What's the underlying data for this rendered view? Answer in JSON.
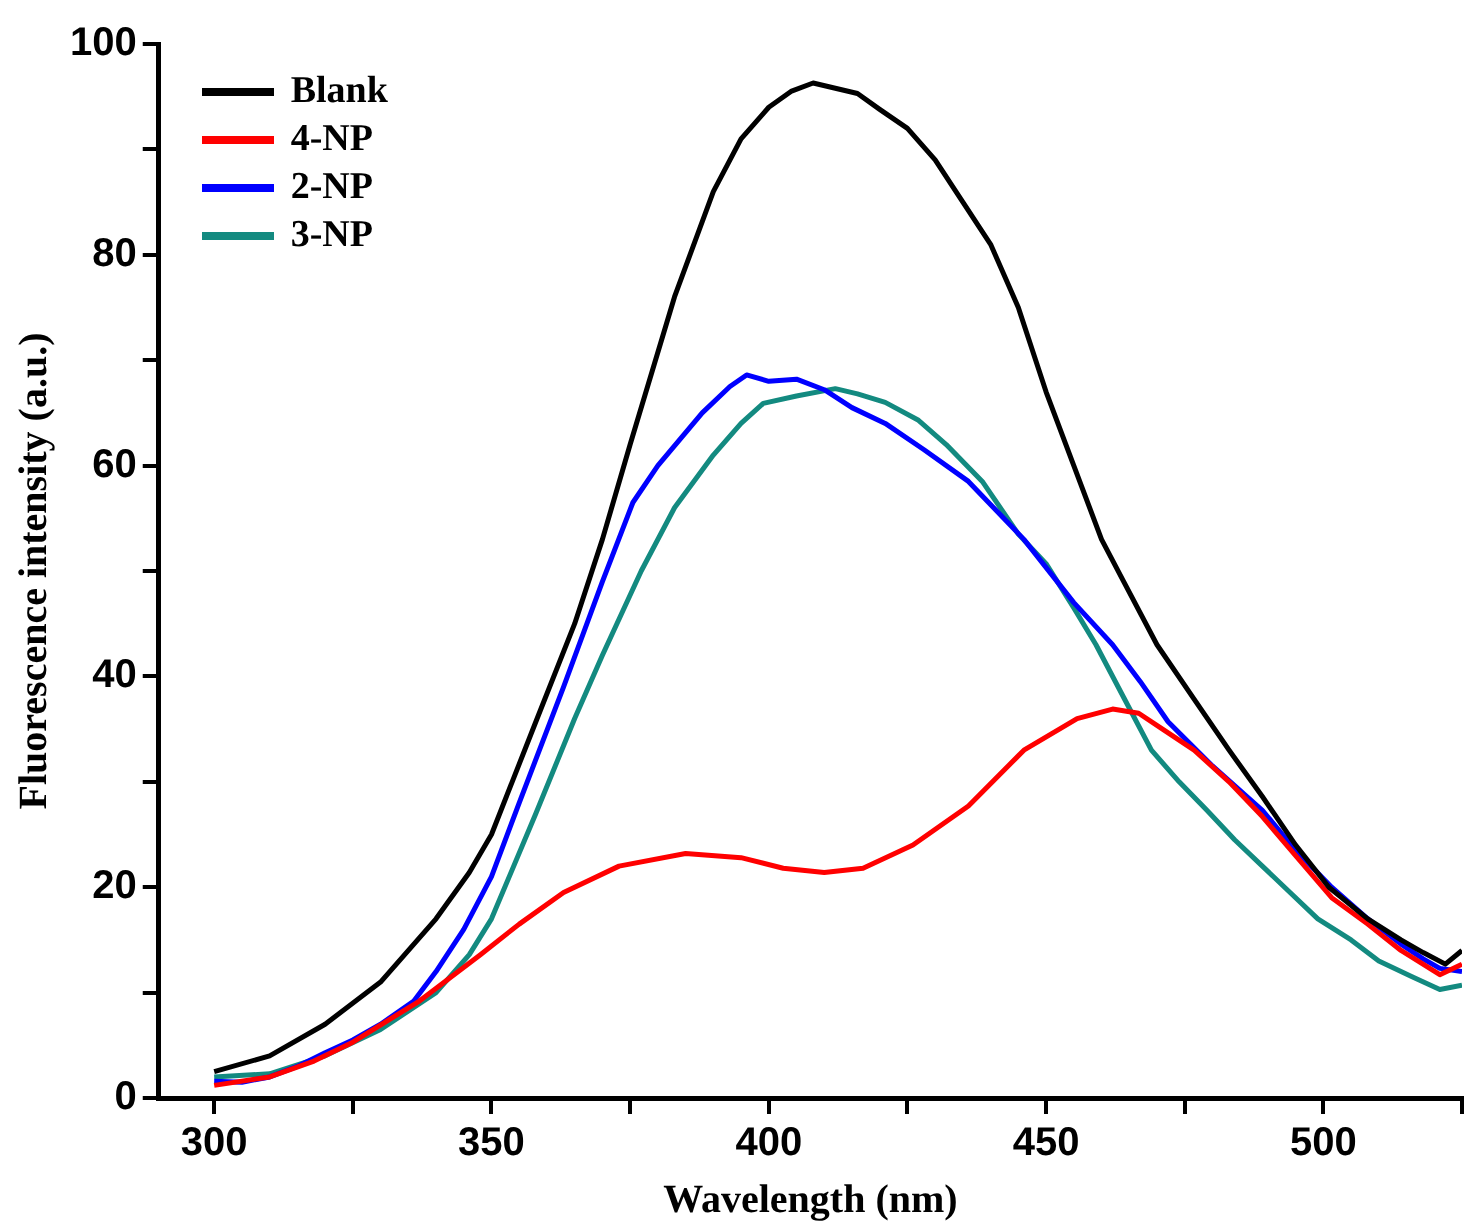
{
  "chart_data": {
    "type": "line",
    "xlabel": "Wavelength (nm)",
    "ylabel": "Fluorescence intensity (a.u.)",
    "xlim": [
      290,
      525
    ],
    "ylim": [
      0,
      100
    ],
    "xticks": [
      300,
      {
        "value": 325,
        "label": null
      },
      350,
      {
        "value": 375,
        "label": null
      },
      400,
      {
        "value": 425,
        "label": null
      },
      450,
      {
        "value": 475,
        "label": null
      },
      500,
      {
        "value": 525,
        "label": null
      }
    ],
    "yticks": [
      0,
      {
        "value": 10,
        "label": null
      },
      20,
      {
        "value": 30,
        "label": null
      },
      40,
      {
        "value": 50,
        "label": null
      },
      60,
      {
        "value": 70,
        "label": null
      },
      80,
      {
        "value": 90,
        "label": null
      },
      100
    ],
    "grid": false,
    "legend": "top left",
    "marker": "none",
    "line_style": "solid",
    "series": [
      {
        "name": "Blank",
        "color": "#000000",
        "x": [
          300,
          310,
          320,
          330,
          340,
          346,
          350,
          358,
          365,
          370,
          375,
          383,
          390,
          395,
          400,
          404,
          408,
          412,
          416,
          420,
          425,
          430,
          435,
          440,
          445,
          450,
          455,
          460,
          464,
          470,
          477,
          483,
          489,
          495,
          501,
          508,
          514,
          518,
          522,
          525
        ],
        "values": [
          2.5,
          4,
          7,
          11,
          17,
          21.4,
          25,
          35.7,
          45,
          53,
          62,
          76,
          86,
          91,
          94,
          95.5,
          96.3,
          95.8,
          95.3,
          93.8,
          92,
          89,
          85,
          81,
          75,
          67,
          60,
          53,
          49,
          43,
          37.6,
          33,
          28.6,
          24,
          20,
          17,
          15,
          13.8,
          12.7,
          14
        ]
      },
      {
        "name": "4-NP",
        "color": "#ff0000",
        "x": [
          300,
          310,
          318,
          325,
          337,
          348,
          355,
          363,
          373,
          385,
          395,
          402.6,
          410,
          417,
          426,
          436,
          446,
          455.6,
          462,
          466.7,
          471,
          476.7,
          483,
          489,
          495,
          501.5,
          508,
          514,
          521,
          525
        ],
        "values": [
          1.2,
          2,
          3.5,
          5.3,
          9.2,
          13.6,
          16.5,
          19.5,
          22,
          23.2,
          22.8,
          21.8,
          21.4,
          21.8,
          24,
          27.7,
          33,
          36,
          36.9,
          36.5,
          35,
          33,
          30,
          26.7,
          23,
          19,
          16.5,
          14,
          11.7,
          12.7
        ]
      },
      {
        "name": "2-NP",
        "color": "#0000ff",
        "x": [
          300,
          305,
          310,
          315,
          320,
          325,
          330,
          336,
          340,
          345,
          350,
          355,
          363,
          370,
          375.5,
          380,
          388,
          393,
          396,
          400,
          405,
          410,
          415,
          421,
          428,
          436,
          446,
          455,
          462,
          467,
          472,
          480,
          489,
          495,
          501.5,
          508,
          514,
          518,
          521,
          525
        ],
        "values": [
          1.6,
          1.5,
          2,
          3,
          4.3,
          5.5,
          7,
          9.2,
          12,
          16,
          21,
          28,
          39,
          49,
          56.5,
          60,
          65,
          67.5,
          68.6,
          68,
          68.2,
          67.2,
          65.5,
          64,
          61.5,
          58.5,
          53,
          47,
          43,
          39.5,
          35.7,
          31.5,
          27.3,
          23.5,
          20,
          17,
          14.6,
          13.2,
          12.3,
          12
        ]
      },
      {
        "name": "3-NP",
        "color": "#138a80",
        "x": [
          300,
          310,
          320,
          330,
          340,
          346,
          350,
          358,
          365,
          370,
          377,
          383,
          390,
          395,
          399,
          405,
          412,
          416,
          421,
          427,
          432,
          438.5,
          445,
          450,
          455,
          459,
          464,
          469,
          474,
          479,
          484,
          489,
          494,
          499,
          505,
          510,
          516,
          521,
          525
        ],
        "values": [
          2,
          2.3,
          4,
          6.5,
          10,
          13.6,
          17,
          27,
          36,
          42,
          50,
          56,
          61,
          64,
          65.9,
          66.6,
          67.3,
          66.8,
          66,
          64.3,
          62,
          58.5,
          53.5,
          50.7,
          46.5,
          43,
          38,
          33,
          30,
          27.3,
          24.5,
          22,
          19.5,
          17,
          15,
          13,
          11.5,
          10.3,
          10.7
        ]
      }
    ]
  }
}
